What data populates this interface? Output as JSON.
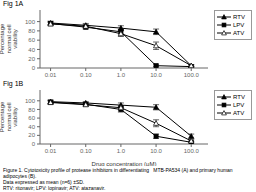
{
  "chart_data": [
    {
      "type": "line",
      "title": "Fig 1A",
      "ylabel": "Percentage normal cell viability",
      "log": "x",
      "xlim": [
        0.005,
        300
      ],
      "xticks": [
        0.01,
        {
          "value": 0.1,
          "label": "0.10"
        },
        {
          "value": 1,
          "label": "1.0"
        },
        {
          "value": 10,
          "label": "10.0"
        },
        {
          "value": 100,
          "label": "100.0"
        }
      ],
      "ylim": [
        0,
        125
      ],
      "yticks": [
        0,
        20,
        40,
        60,
        80,
        100
      ],
      "grid": false,
      "legend": "right",
      "x": [
        0.01,
        0.1,
        1.0,
        10.0,
        100.0
      ],
      "series": [
        {
          "name": "RTV",
          "color": "black",
          "marker": "triangle",
          "values": [
            97,
            92,
            86,
            78,
            5
          ],
          "errors": [
            4,
            4,
            5,
            6,
            2
          ]
        },
        {
          "name": "LPV",
          "color": "black",
          "marker": "square",
          "values": [
            96,
            88,
            78,
            5,
            3
          ],
          "errors": [
            3,
            4,
            5,
            2,
            1
          ]
        },
        {
          "name": "ATV",
          "color": "black",
          "marker": "triangle-open",
          "values": [
            95,
            90,
            74,
            48,
            5
          ],
          "errors": [
            4,
            3,
            6,
            8,
            2
          ]
        }
      ]
    },
    {
      "type": "line",
      "title": "Fig 1B",
      "xlabel": "Drug concentration (μM)",
      "ylabel": "Percentage normal cell viability",
      "log": "x",
      "xlim": [
        0.005,
        300
      ],
      "xticks": [
        0.01,
        {
          "value": 0.1,
          "label": "0.10"
        },
        {
          "value": 1,
          "label": "1.0"
        },
        {
          "value": 10,
          "label": "10.0"
        },
        {
          "value": 100,
          "label": "100.0"
        }
      ],
      "ylim": [
        0,
        125
      ],
      "yticks": [
        0,
        20,
        40,
        60,
        80,
        100
      ],
      "grid": false,
      "legend": "right",
      "x": [
        0.01,
        0.1,
        1.0,
        10.0,
        100.0
      ],
      "series": [
        {
          "name": "RTV",
          "color": "black",
          "marker": "triangle",
          "values": [
            98,
            95,
            90,
            85,
            18
          ],
          "errors": [
            4,
            3,
            5,
            6,
            5
          ]
        },
        {
          "name": "LPV",
          "color": "black",
          "marker": "square",
          "values": [
            97,
            92,
            80,
            18,
            4
          ],
          "errors": [
            3,
            4,
            6,
            5,
            2
          ]
        },
        {
          "name": "ATV",
          "color": "black",
          "marker": "triangle-open",
          "values": [
            96,
            91,
            84,
            48,
            7
          ],
          "errors": [
            4,
            3,
            5,
            8,
            3
          ]
        }
      ],
      "annotations": [
        "Figure 1. Cytotoxicity profile of protease inhibitors in differentiating   MTB-PA534 (A) and primary human adipocytes (B).",
        "Data expressed as mean (n=6) ±SD.",
        "RTV: ritonavir; LPV: lopinavir; ATV: atazanavir."
      ]
    }
  ]
}
